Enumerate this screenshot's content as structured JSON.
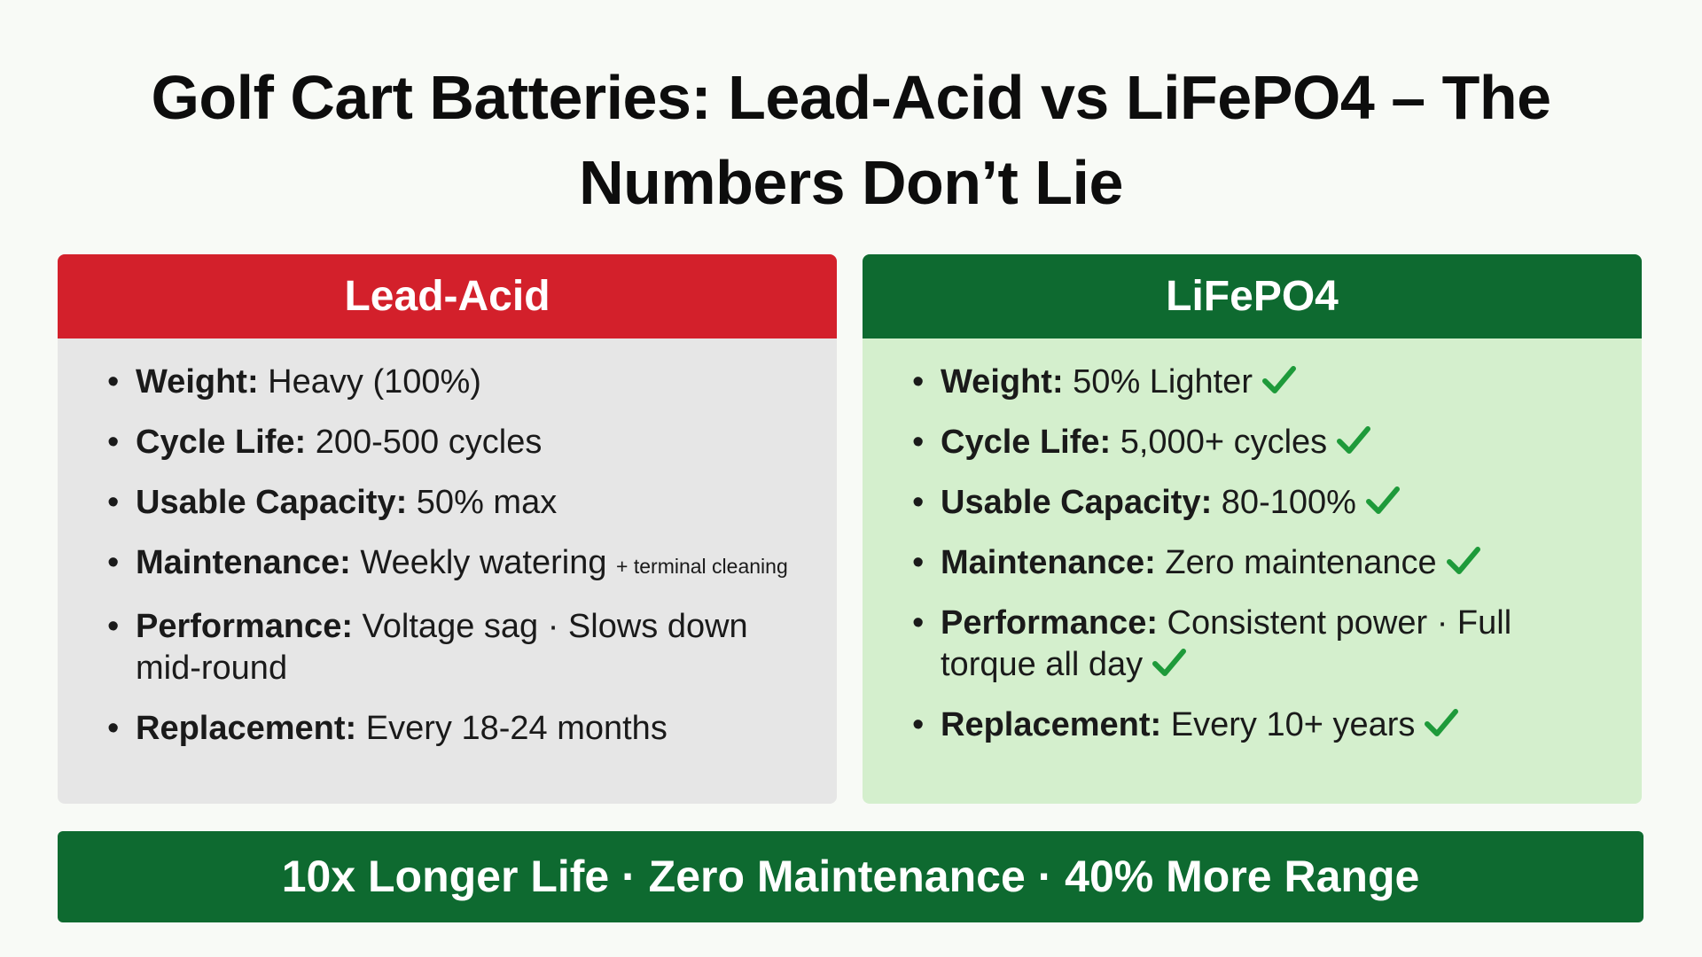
{
  "title": "Golf Cart Batteries: Lead-Acid vs LiFePO4 – The Numbers Don’t Lie",
  "columns": [
    {
      "header": "Lead-Acid",
      "items": [
        {
          "label": "Weight:",
          "text": "Heavy (100%)"
        },
        {
          "label": "Cycle Life:",
          "text": "200-500 cycles"
        },
        {
          "label": "Usable Capacity:",
          "text": "50% max"
        },
        {
          "label": "Maintenance:",
          "text": "Weekly watering",
          "note": "+ terminal cleaning"
        },
        {
          "label": "Performance:",
          "text": "Voltage sag · Slows down mid-round"
        },
        {
          "label": "Replacement:",
          "text": "Every 18-24 months"
        }
      ]
    },
    {
      "header": "LiFePO4",
      "items": [
        {
          "label": "Weight:",
          "text": "50% Lighter"
        },
        {
          "label": "Cycle Life:",
          "text": "5,000+ cycles"
        },
        {
          "label": "Usable Capacity:",
          "text": "80-100%"
        },
        {
          "label": "Maintenance:",
          "text": "Zero maintenance"
        },
        {
          "label": "Performance:",
          "text": "Consistent power · Full torque all day"
        },
        {
          "label": "Replacement:",
          "text": "Every 10+ years"
        }
      ]
    }
  ],
  "footer": "10x Longer Life · Zero Maintenance · 40% More Range"
}
